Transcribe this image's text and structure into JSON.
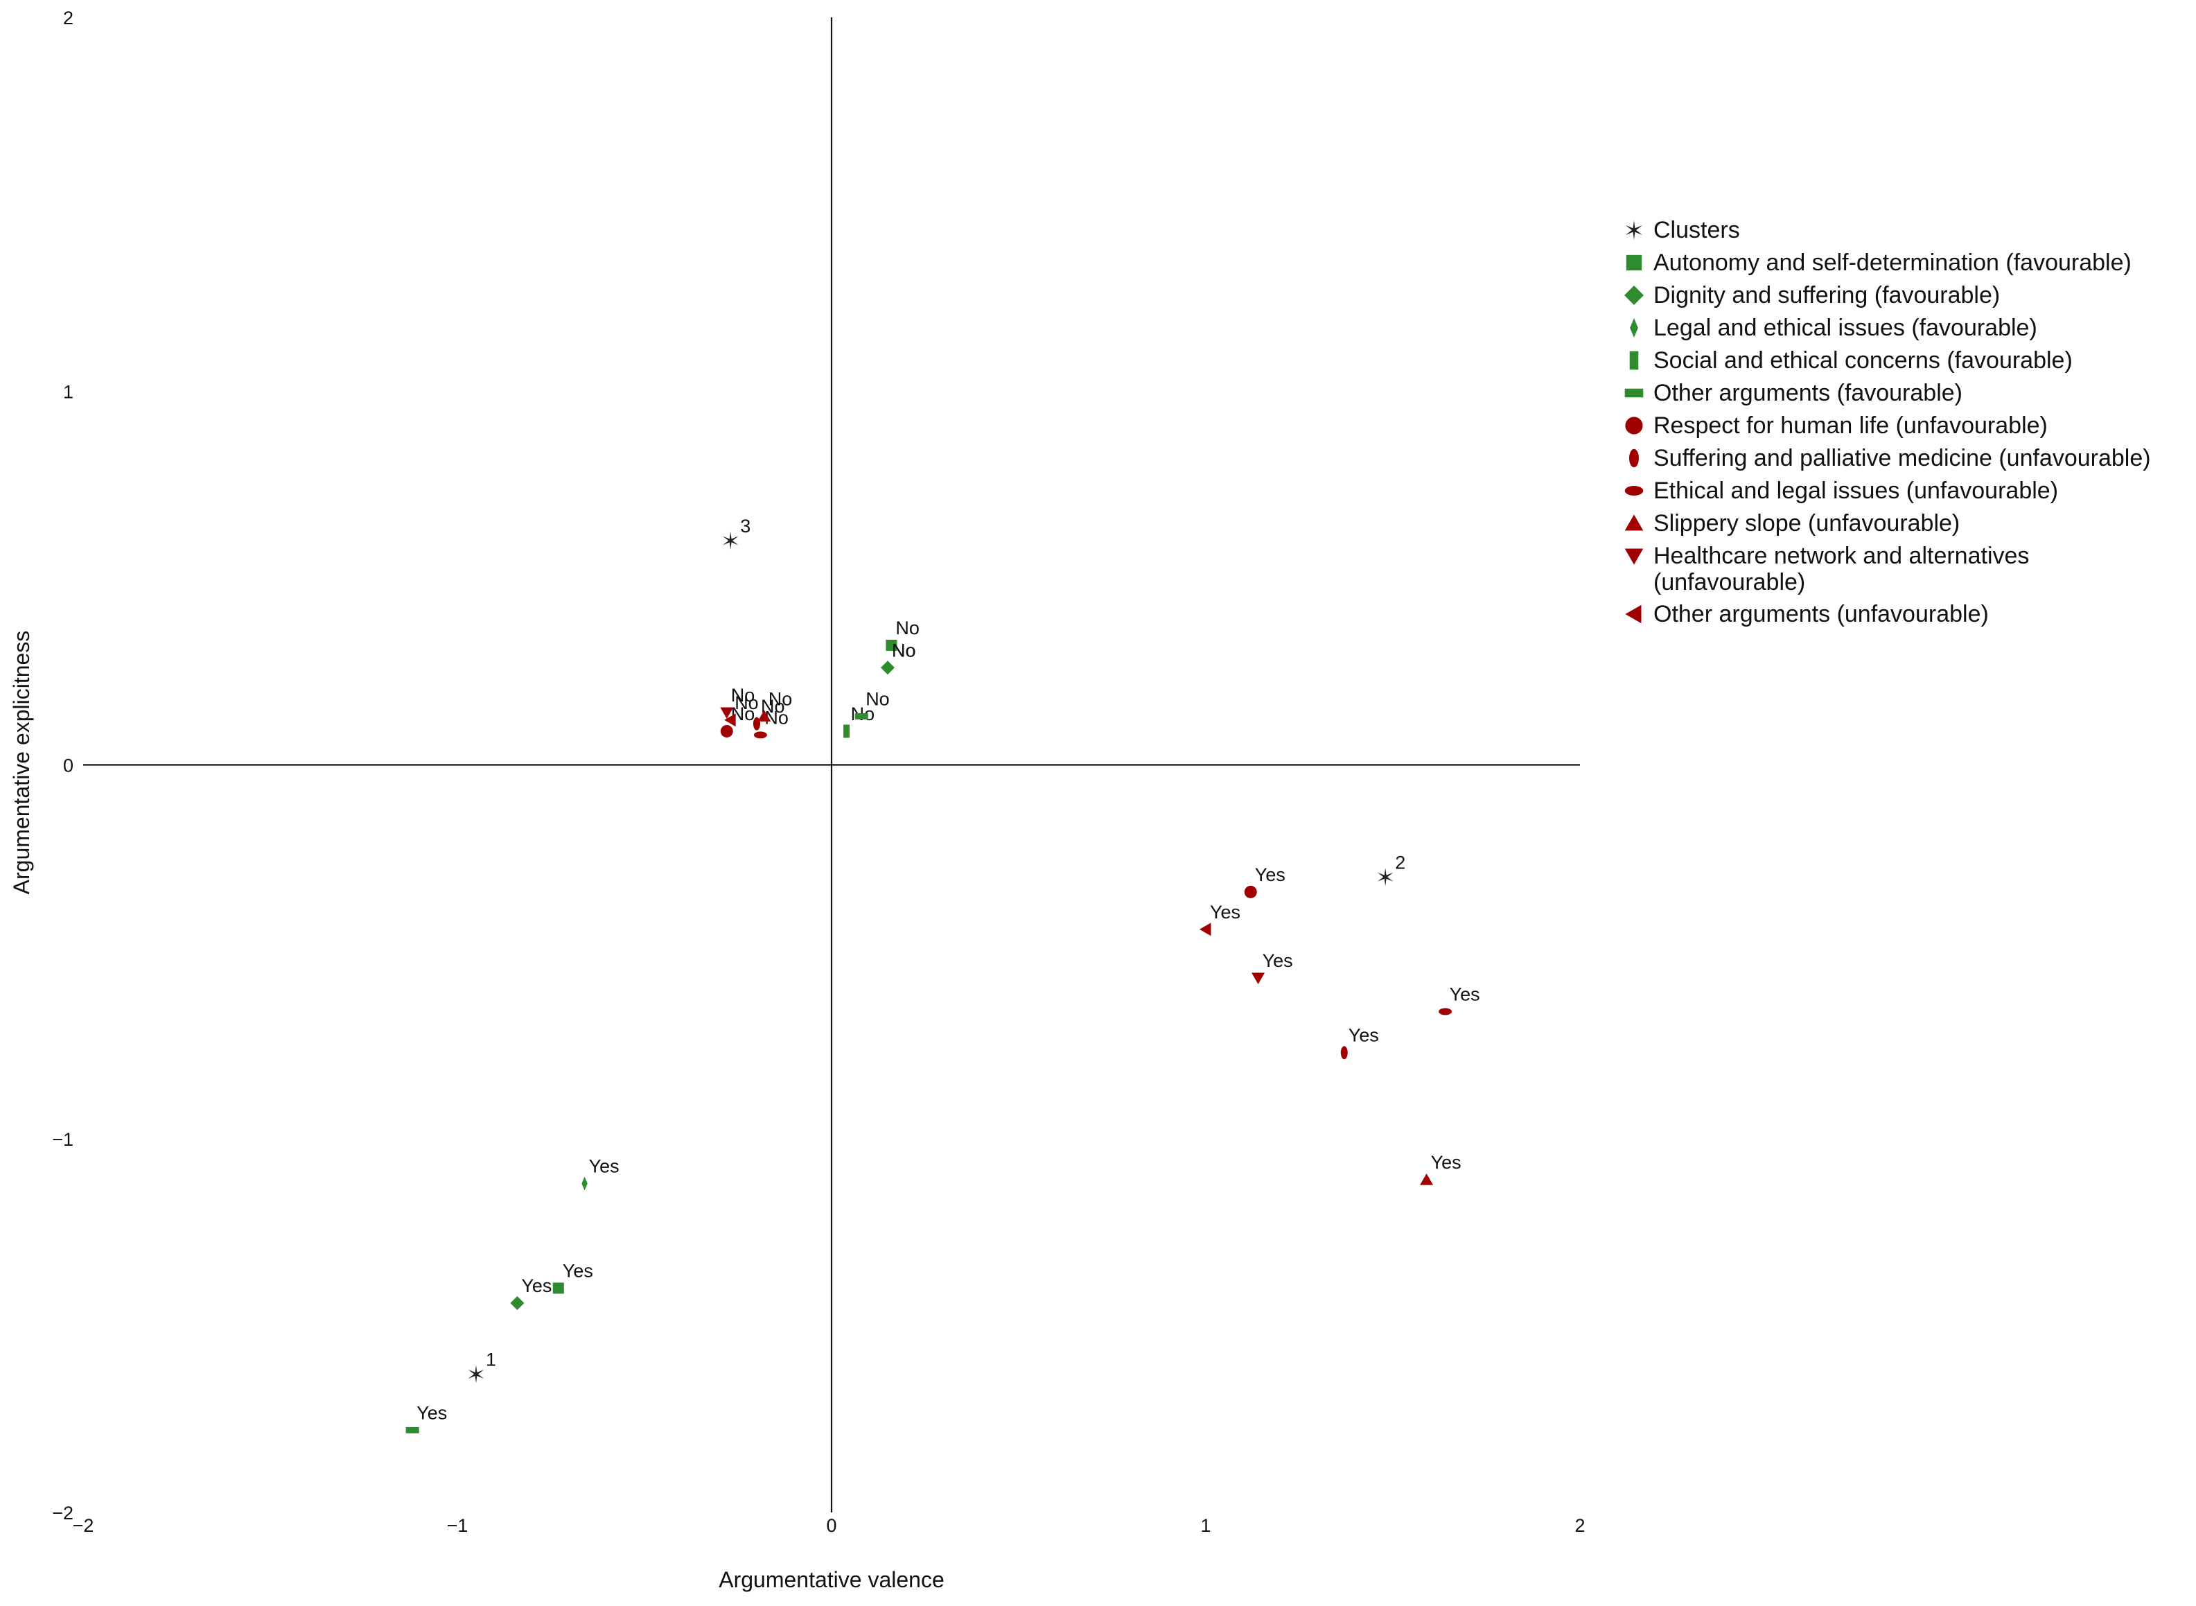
{
  "chart_data": {
    "type": "scatter",
    "title": "",
    "xlabel": "Argumentative valence",
    "ylabel": "Argumentative explicitness",
    "xlim": [
      -2,
      2
    ],
    "ylim": [
      -2,
      2
    ],
    "xticks": [
      -2,
      -1,
      0,
      1,
      2
    ],
    "yticks": [
      -2,
      -1,
      0,
      1,
      2
    ],
    "xtick_labels": [
      "−2",
      "−1",
      "0",
      "1",
      "2"
    ],
    "ytick_labels": [
      "−2",
      "−1",
      "0",
      "1",
      "2"
    ],
    "grid": false,
    "reference_lines": [
      "x=0",
      "y=0"
    ],
    "legend_position": "right",
    "colors": {
      "favourable": "#2e8b2e",
      "unfavourable": "#a00000",
      "cluster": "#222222"
    },
    "series": [
      {
        "name": "Clusters",
        "marker": "star",
        "color": "#222222",
        "points": [
          {
            "x": -0.95,
            "y": -1.63,
            "label": "1"
          },
          {
            "x": 1.48,
            "y": -0.3,
            "label": "2"
          },
          {
            "x": -0.27,
            "y": 0.6,
            "label": "3"
          }
        ]
      },
      {
        "name": "Autonomy and self-determination (favourable)",
        "marker": "square",
        "color": "#2e8b2e",
        "points": [
          {
            "x": -0.73,
            "y": -1.4,
            "label": "Yes"
          },
          {
            "x": 0.16,
            "y": 0.32,
            "label": "No"
          }
        ]
      },
      {
        "name": "Dignity and suffering (favourable)",
        "marker": "diamond",
        "color": "#2e8b2e",
        "points": [
          {
            "x": -0.84,
            "y": -1.44,
            "label": "Yes"
          },
          {
            "x": 0.15,
            "y": 0.26,
            "label": "No"
          }
        ]
      },
      {
        "name": "Legal and ethical issues (favourable)",
        "marker": "thin-diamond",
        "color": "#2e8b2e",
        "points": [
          {
            "x": -0.66,
            "y": -1.12,
            "label": "Yes"
          },
          {
            "x": 0.15,
            "y": 0.26,
            "label": "No"
          }
        ]
      },
      {
        "name": "Social and ethical concerns (favourable)",
        "marker": "tall-rect",
        "color": "#2e8b2e",
        "points": [
          {
            "x": 0.04,
            "y": 0.09,
            "label": "No"
          }
        ]
      },
      {
        "name": "Other arguments (favourable)",
        "marker": "wide-rect",
        "color": "#2e8b2e",
        "points": [
          {
            "x": -1.12,
            "y": -1.78,
            "label": "Yes"
          },
          {
            "x": 0.08,
            "y": 0.13,
            "label": "No"
          }
        ]
      },
      {
        "name": "Respect for human life (unfavourable)",
        "marker": "circle",
        "color": "#a00000",
        "points": [
          {
            "x": 1.12,
            "y": -0.34,
            "label": "Yes"
          },
          {
            "x": -0.28,
            "y": 0.09,
            "label": "No"
          }
        ]
      },
      {
        "name": "Suffering and palliative medicine (unfavourable)",
        "marker": "tall-ellipse",
        "color": "#a00000",
        "points": [
          {
            "x": 1.37,
            "y": -0.77,
            "label": "Yes"
          },
          {
            "x": -0.2,
            "y": 0.11,
            "label": "No"
          }
        ]
      },
      {
        "name": "Ethical and legal issues (unfavourable)",
        "marker": "wide-ellipse",
        "color": "#a00000",
        "points": [
          {
            "x": 1.64,
            "y": -0.66,
            "label": "Yes"
          },
          {
            "x": -0.19,
            "y": 0.08,
            "label": "No"
          }
        ]
      },
      {
        "name": "Slippery slope (unfavourable)",
        "marker": "triangle-up",
        "color": "#a00000",
        "points": [
          {
            "x": 1.59,
            "y": -1.11,
            "label": "Yes"
          },
          {
            "x": -0.18,
            "y": 0.13,
            "label": "No"
          }
        ]
      },
      {
        "name": "Healthcare network and alternatives (unfavourable)",
        "marker": "triangle-down",
        "color": "#a00000",
        "points": [
          {
            "x": 1.14,
            "y": -0.57,
            "label": "Yes"
          },
          {
            "x": -0.28,
            "y": 0.14,
            "label": "No"
          }
        ]
      },
      {
        "name": "Other arguments (unfavourable)",
        "marker": "triangle-left",
        "color": "#a00000",
        "points": [
          {
            "x": 1.0,
            "y": -0.44,
            "label": "Yes"
          },
          {
            "x": -0.27,
            "y": 0.12,
            "label": "No"
          }
        ]
      }
    ]
  },
  "legend": {
    "items": [
      {
        "text": "Clusters",
        "marker": "star",
        "color": "#222222"
      },
      {
        "text": "Autonomy and self-determination (favourable)",
        "marker": "square",
        "color": "#2e8b2e"
      },
      {
        "text": "Dignity and suffering (favourable)",
        "marker": "diamond",
        "color": "#2e8b2e"
      },
      {
        "text": "Legal and ethical issues (favourable)",
        "marker": "thin-diamond",
        "color": "#2e8b2e"
      },
      {
        "text": "Social and ethical concerns (favourable)",
        "marker": "tall-rect",
        "color": "#2e8b2e"
      },
      {
        "text": "Other arguments (favourable)",
        "marker": "wide-rect",
        "color": "#2e8b2e"
      },
      {
        "text": "Respect for human life (unfavourable)",
        "marker": "circle",
        "color": "#a00000"
      },
      {
        "text": "Suffering and palliative medicine (unfavourable)",
        "marker": "tall-ellipse",
        "color": "#a00000"
      },
      {
        "text": "Ethical and legal issues (unfavourable)",
        "marker": "wide-ellipse",
        "color": "#a00000"
      },
      {
        "text": "Slippery slope (unfavourable)",
        "marker": "triangle-up",
        "color": "#a00000"
      },
      {
        "text": "Healthcare network and alternatives",
        "text2": "(unfavourable)",
        "marker": "triangle-down",
        "color": "#a00000"
      },
      {
        "text": "Other arguments (unfavourable)",
        "marker": "triangle-left",
        "color": "#a00000"
      }
    ]
  }
}
